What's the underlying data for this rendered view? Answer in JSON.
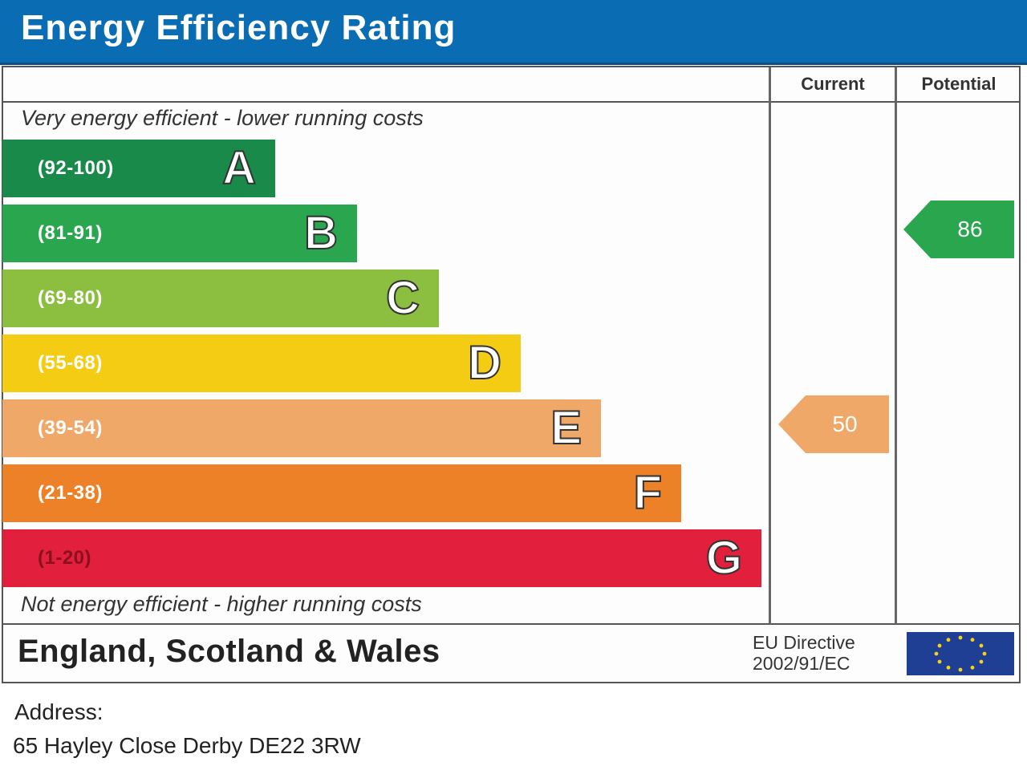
{
  "header": {
    "title": "Energy Efficiency Rating"
  },
  "columns": {
    "current": "Current",
    "potential": "Potential"
  },
  "captions": {
    "top": "Very energy efficient - lower running costs",
    "bottom": "Not energy efficient - higher running costs"
  },
  "footer": {
    "country": "England, Scotland & Wales",
    "eu_line1": "EU Directive",
    "eu_line2": "2002/91/EC"
  },
  "address": {
    "label": "Address:",
    "value": "65 Hayley Close Derby DE22 3RW"
  },
  "chart_data": {
    "type": "bar",
    "title": "Energy Efficiency Rating",
    "categories": [
      "A",
      "B",
      "C",
      "D",
      "E",
      "F",
      "G"
    ],
    "bands": [
      {
        "letter": "A",
        "range": "(92-100)",
        "min": 92,
        "max": 100,
        "color": "#1a8a4a"
      },
      {
        "letter": "B",
        "range": "(81-91)",
        "min": 81,
        "max": 91,
        "color": "#2aa64f"
      },
      {
        "letter": "C",
        "range": "(69-80)",
        "min": 69,
        "max": 80,
        "color": "#8cbe3f"
      },
      {
        "letter": "D",
        "range": "(55-68)",
        "min": 55,
        "max": 68,
        "color": "#f5cc14"
      },
      {
        "letter": "E",
        "range": "(39-54)",
        "min": 39,
        "max": 54,
        "color": "#f0a868"
      },
      {
        "letter": "F",
        "range": "(21-38)",
        "min": 21,
        "max": 38,
        "color": "#ec8128"
      },
      {
        "letter": "G",
        "range": "(1-20)",
        "min": 1,
        "max": 20,
        "color": "#e21f3c"
      }
    ],
    "current": {
      "value": 50,
      "band": "E",
      "color": "#f0a868"
    },
    "potential": {
      "value": 86,
      "band": "B",
      "color": "#2aa64f"
    }
  }
}
